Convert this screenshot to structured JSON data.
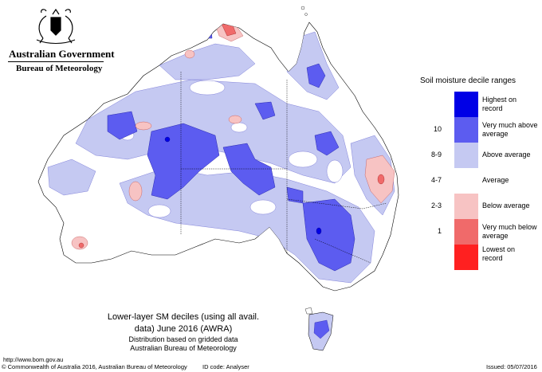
{
  "header": {
    "government": "Australian Government",
    "bureau": "Bureau of Meteorology"
  },
  "legend": {
    "title": "Soil moisture decile ranges",
    "items": [
      {
        "label": "Highest on record",
        "value": "",
        "color": "#0000e6"
      },
      {
        "label": "Very much above average",
        "value": "10",
        "color": "#5c5cf0"
      },
      {
        "label": "Above average",
        "value": "8-9",
        "color": "#c5c9f2"
      },
      {
        "label": "Average",
        "value": "4-7",
        "color": "#ffffff"
      },
      {
        "label": "Below average",
        "value": "2-3",
        "color": "#f7c3c3"
      },
      {
        "label": "Very much below average",
        "value": "1",
        "color": "#f06a6a"
      },
      {
        "label": "Lowest on record",
        "value": "",
        "color": "#ff2020"
      }
    ]
  },
  "caption": {
    "title_line1": "Lower-layer SM deciles (using all avail.",
    "title_line2": "data) June 2016 (AWRA)",
    "sub_line1": "Distribution based on gridded data",
    "sub_line2": "Australian Bureau of Meteorology"
  },
  "footer": {
    "url": "http://www.bom.gov.au",
    "copyright": "© Commonwealth of Australia 2016, Australian Bureau of Meteorology",
    "id_code": "ID code: Analyser",
    "issued": "Issued: 05/07/2016"
  }
}
